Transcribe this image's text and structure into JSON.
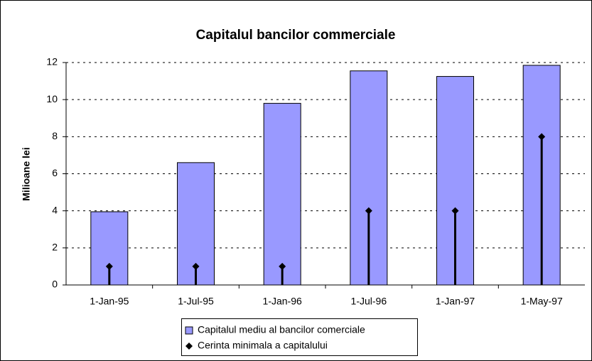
{
  "chart_data": {
    "type": "bar",
    "title": "Capitalul bancilor commerciale",
    "y_label": "Milioane lei",
    "categories": [
      "1-Jan-95",
      "1-Jul-95",
      "1-Jan-96",
      "1-Jul-96",
      "1-Jan-97",
      "1-May-97"
    ],
    "series": [
      {
        "name": "Capitalul mediu al bancilor comerciale",
        "type": "bar",
        "color": "#9999ff",
        "values": [
          3.95,
          6.6,
          9.8,
          11.55,
          11.25,
          11.85
        ]
      },
      {
        "name": "Cerinta minimala a capitalului",
        "type": "stem",
        "color": "#000000",
        "values": [
          1,
          1,
          1,
          4,
          4,
          8
        ]
      }
    ],
    "ylim": [
      0,
      12
    ],
    "yticks": [
      0,
      2,
      4,
      6,
      8,
      10,
      12
    ],
    "grid": true,
    "legend": "bottom"
  }
}
